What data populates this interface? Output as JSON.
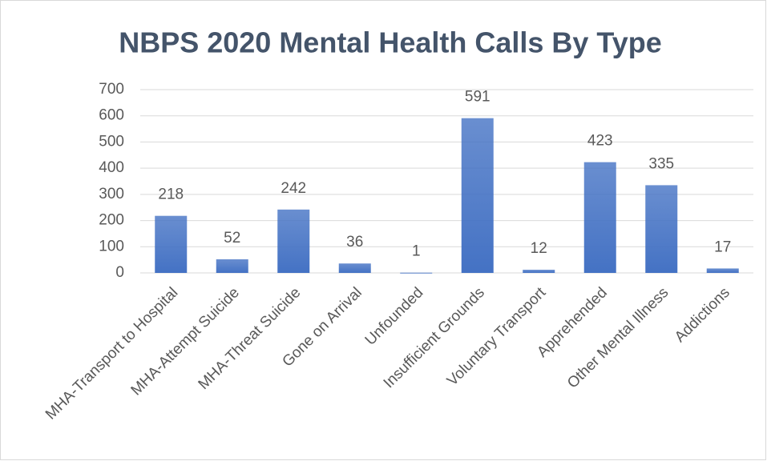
{
  "chart_data": {
    "type": "bar",
    "title": "NBPS 2020 Mental Health Calls By Type",
    "categories": [
      "MHA-Transport to Hospital",
      "MHA-Attempt Suicide",
      "MHA-Threat Suicide",
      "Gone on Arrival",
      "Unfounded",
      "Insufficient Grounds",
      "Voluntary Transport",
      "Apprehended",
      "Other Mental Illness",
      "Addictions"
    ],
    "values": [
      218,
      52,
      242,
      36,
      1,
      591,
      12,
      423,
      335,
      17
    ],
    "color": "#4472c4",
    "ylim": [
      0,
      700
    ],
    "yticks": [
      0,
      100,
      200,
      300,
      400,
      500,
      600,
      700
    ],
    "grid": true
  }
}
